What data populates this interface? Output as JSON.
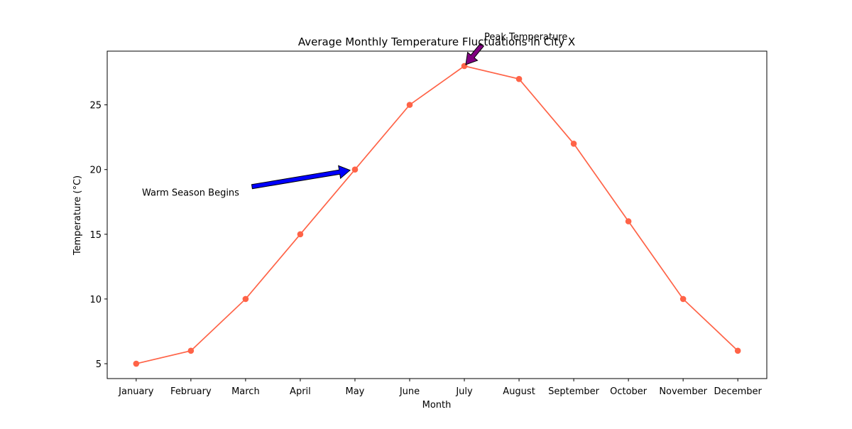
{
  "chart_data": {
    "type": "line",
    "title": "Average Monthly Temperature Fluctuations in City X",
    "xlabel": "Month",
    "ylabel": "Temperature (°C)",
    "categories": [
      "January",
      "February",
      "March",
      "April",
      "May",
      "June",
      "July",
      "August",
      "September",
      "October",
      "November",
      "December"
    ],
    "series": [
      {
        "values": [
          5,
          6,
          10,
          15,
          20,
          25,
          28,
          27,
          22,
          16,
          10,
          6
        ],
        "color": "#ff6347",
        "marker": "circle"
      }
    ],
    "ylim": [
      3.85,
      29.15
    ],
    "yticks": [
      5,
      10,
      15,
      20,
      25
    ],
    "grid": false,
    "annotations": [
      {
        "text": "Peak Temperature",
        "category": "July",
        "value": 28,
        "arrow_color": "#800080"
      },
      {
        "text": "Warm Season Begins",
        "category": "May",
        "value": 20,
        "arrow_color": "#0000ff"
      }
    ]
  }
}
